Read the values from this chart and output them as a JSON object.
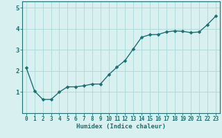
{
  "title": "",
  "xlabel": "Humidex (Indice chaleur)",
  "ylabel": "",
  "x_values": [
    0,
    1,
    2,
    3,
    4,
    5,
    6,
    7,
    8,
    9,
    10,
    11,
    12,
    13,
    14,
    15,
    16,
    17,
    18,
    19,
    20,
    21,
    22,
    23
  ],
  "y_values": [
    2.15,
    1.05,
    0.65,
    0.65,
    1.0,
    1.25,
    1.25,
    1.3,
    1.38,
    1.38,
    1.82,
    2.18,
    2.5,
    3.05,
    3.6,
    3.72,
    3.73,
    3.85,
    3.9,
    3.88,
    3.82,
    3.85,
    4.2,
    4.6
  ],
  "line_color": "#1a7070",
  "marker_color": "#1a7070",
  "bg_color": "#d8f0f0",
  "grid_color": "#aad8d8",
  "axis_color": "#1a7070",
  "tick_label_color": "#1a7070",
  "xlabel_color": "#1a7070",
  "ylim": [
    0,
    5.3
  ],
  "xlim": [
    -0.5,
    23.5
  ],
  "yticks": [
    1,
    2,
    3,
    4,
    5
  ],
  "xticks": [
    0,
    1,
    2,
    3,
    4,
    5,
    6,
    7,
    8,
    9,
    10,
    11,
    12,
    13,
    14,
    15,
    16,
    17,
    18,
    19,
    20,
    21,
    22,
    23
  ],
  "marker_size": 2.5,
  "line_width": 1.0,
  "tick_fontsize": 5.5,
  "ytick_fontsize": 6.5,
  "xlabel_fontsize": 6.5
}
